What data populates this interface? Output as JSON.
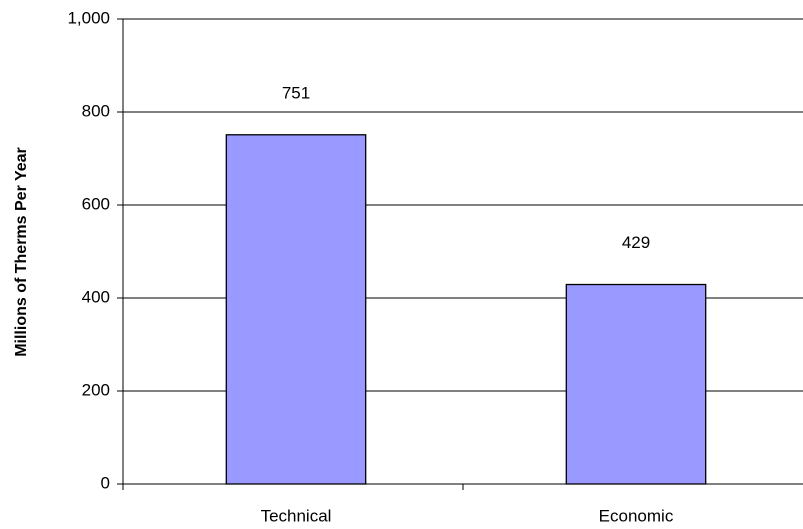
{
  "chart_data": {
    "type": "bar",
    "y_label": "Millions of Therms Per Year",
    "categories": [
      "Technical",
      "Economic"
    ],
    "values": [
      751,
      429
    ],
    "color": "#9999ff",
    "ylim": [
      0,
      1000
    ],
    "yticks": [
      0,
      200,
      400,
      600,
      800,
      {
        "value": 1000,
        "label": "1,000"
      }
    ],
    "grid": true,
    "data_labels": true
  }
}
